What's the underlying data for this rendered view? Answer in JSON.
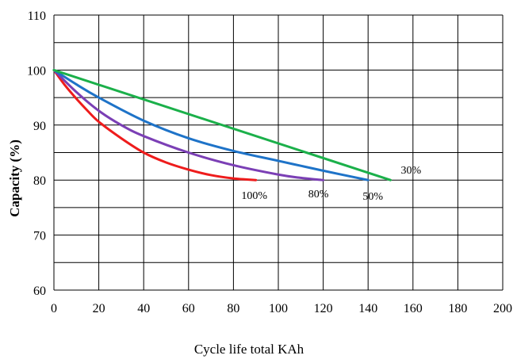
{
  "chart_data": {
    "type": "line",
    "title": "",
    "xlabel": "Cycle life total KAh",
    "ylabel": "Capacity (%)",
    "xlim": [
      0,
      200
    ],
    "ylim": [
      60,
      110
    ],
    "x_ticks": [
      0,
      20,
      40,
      60,
      80,
      100,
      120,
      140,
      160,
      180,
      200
    ],
    "y_ticks": [
      60,
      70,
      80,
      90,
      100,
      110
    ],
    "grid": true,
    "legend": "none",
    "series": [
      {
        "name": "100%",
        "color": "#ee1c1c",
        "points": [
          [
            0,
            100
          ],
          [
            5,
            97.2
          ],
          [
            10,
            94.8
          ],
          [
            15,
            92.6
          ],
          [
            20,
            90.6
          ],
          [
            30,
            87.6
          ],
          [
            40,
            85.0
          ],
          [
            50,
            83.2
          ],
          [
            60,
            81.9
          ],
          [
            70,
            80.9
          ],
          [
            80,
            80.3
          ],
          [
            90,
            80.0
          ]
        ]
      },
      {
        "name": "80%",
        "color": "#7b3fb5",
        "points": [
          [
            0,
            100
          ],
          [
            10,
            96.0
          ],
          [
            20,
            92.6
          ],
          [
            30,
            90.0
          ],
          [
            40,
            88.0
          ],
          [
            60,
            85.0
          ],
          [
            80,
            82.7
          ],
          [
            100,
            81.0
          ],
          [
            110,
            80.4
          ],
          [
            120,
            80.0
          ]
        ]
      },
      {
        "name": "50%",
        "color": "#1e73c8",
        "points": [
          [
            0,
            100
          ],
          [
            10,
            97.4
          ],
          [
            20,
            95.0
          ],
          [
            40,
            90.8
          ],
          [
            60,
            87.6
          ],
          [
            80,
            85.3
          ],
          [
            100,
            83.5
          ],
          [
            120,
            81.7
          ],
          [
            140,
            80.0
          ]
        ]
      },
      {
        "name": "30%",
        "color": "#1bb04a",
        "points": [
          [
            0,
            100
          ],
          [
            150,
            80.0
          ]
        ]
      }
    ]
  }
}
